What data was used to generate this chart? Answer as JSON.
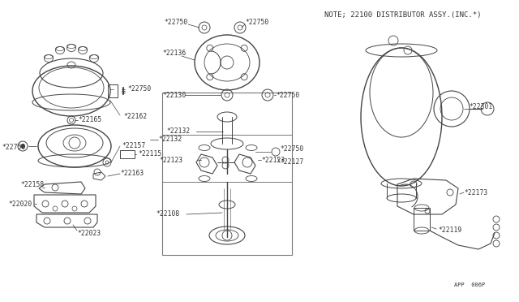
{
  "title": "NOTE; 22100 DISTRIBUTOR ASSY.(INC.*)",
  "footer": "APP  006P",
  "bg_color": "#ffffff",
  "line_color": "#444444",
  "text_color": "#333333",
  "fig_width": 6.4,
  "fig_height": 3.72,
  "dpi": 100,
  "label_fontsize": 5.8,
  "title_fontsize": 6.5,
  "footer_fontsize": 5.0
}
